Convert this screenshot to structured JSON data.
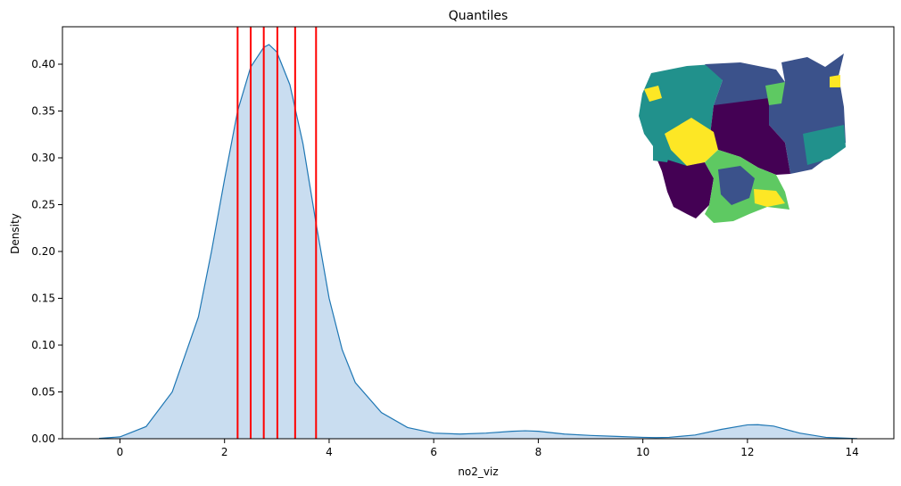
{
  "chart_data": {
    "type": "area",
    "title": "Quantiles",
    "xlabel": "no2_viz",
    "ylabel": "Density",
    "xlim": [
      -1.1,
      14.8
    ],
    "ylim": [
      0,
      0.44
    ],
    "xticks": [
      0,
      2,
      4,
      6,
      8,
      10,
      12,
      14
    ],
    "yticks": [
      0.0,
      0.05,
      0.1,
      0.15,
      0.2,
      0.25,
      0.3,
      0.35,
      0.4
    ],
    "grid": false,
    "legend": "none",
    "colors": {
      "fill": "#c6dbef",
      "line": "#1f77b4",
      "quantile_lines": "#ff0000"
    },
    "kde": {
      "x": [
        -0.4,
        0,
        0.5,
        1,
        1.5,
        1.75,
        2,
        2.25,
        2.5,
        2.75,
        2.85,
        3,
        3.25,
        3.5,
        3.75,
        4,
        4.25,
        4.5,
        5,
        5.5,
        6,
        6.5,
        7,
        7.5,
        7.75,
        8,
        8.5,
        9,
        9.5,
        10,
        10.25,
        10.5,
        11,
        11.5,
        12,
        12.2,
        12.5,
        13,
        13.5,
        14.1
      ],
      "y": [
        0.0004,
        0.002,
        0.013,
        0.05,
        0.13,
        0.2,
        0.277,
        0.35,
        0.397,
        0.418,
        0.421,
        0.413,
        0.378,
        0.315,
        0.23,
        0.15,
        0.095,
        0.06,
        0.028,
        0.012,
        0.006,
        0.005,
        0.006,
        0.008,
        0.0085,
        0.008,
        0.005,
        0.0035,
        0.0025,
        0.0015,
        0.0012,
        0.0015,
        0.004,
        0.01,
        0.0148,
        0.015,
        0.0135,
        0.006,
        0.0015,
        0.0002
      ]
    },
    "quantile_lines": [
      2.25,
      2.5,
      2.75,
      3.01,
      3.35,
      3.75
    ],
    "inset": {
      "type": "choropleth-map",
      "colormap": [
        "#440154",
        "#3b528b",
        "#21918c",
        "#5ec962",
        "#fde725"
      ]
    }
  }
}
